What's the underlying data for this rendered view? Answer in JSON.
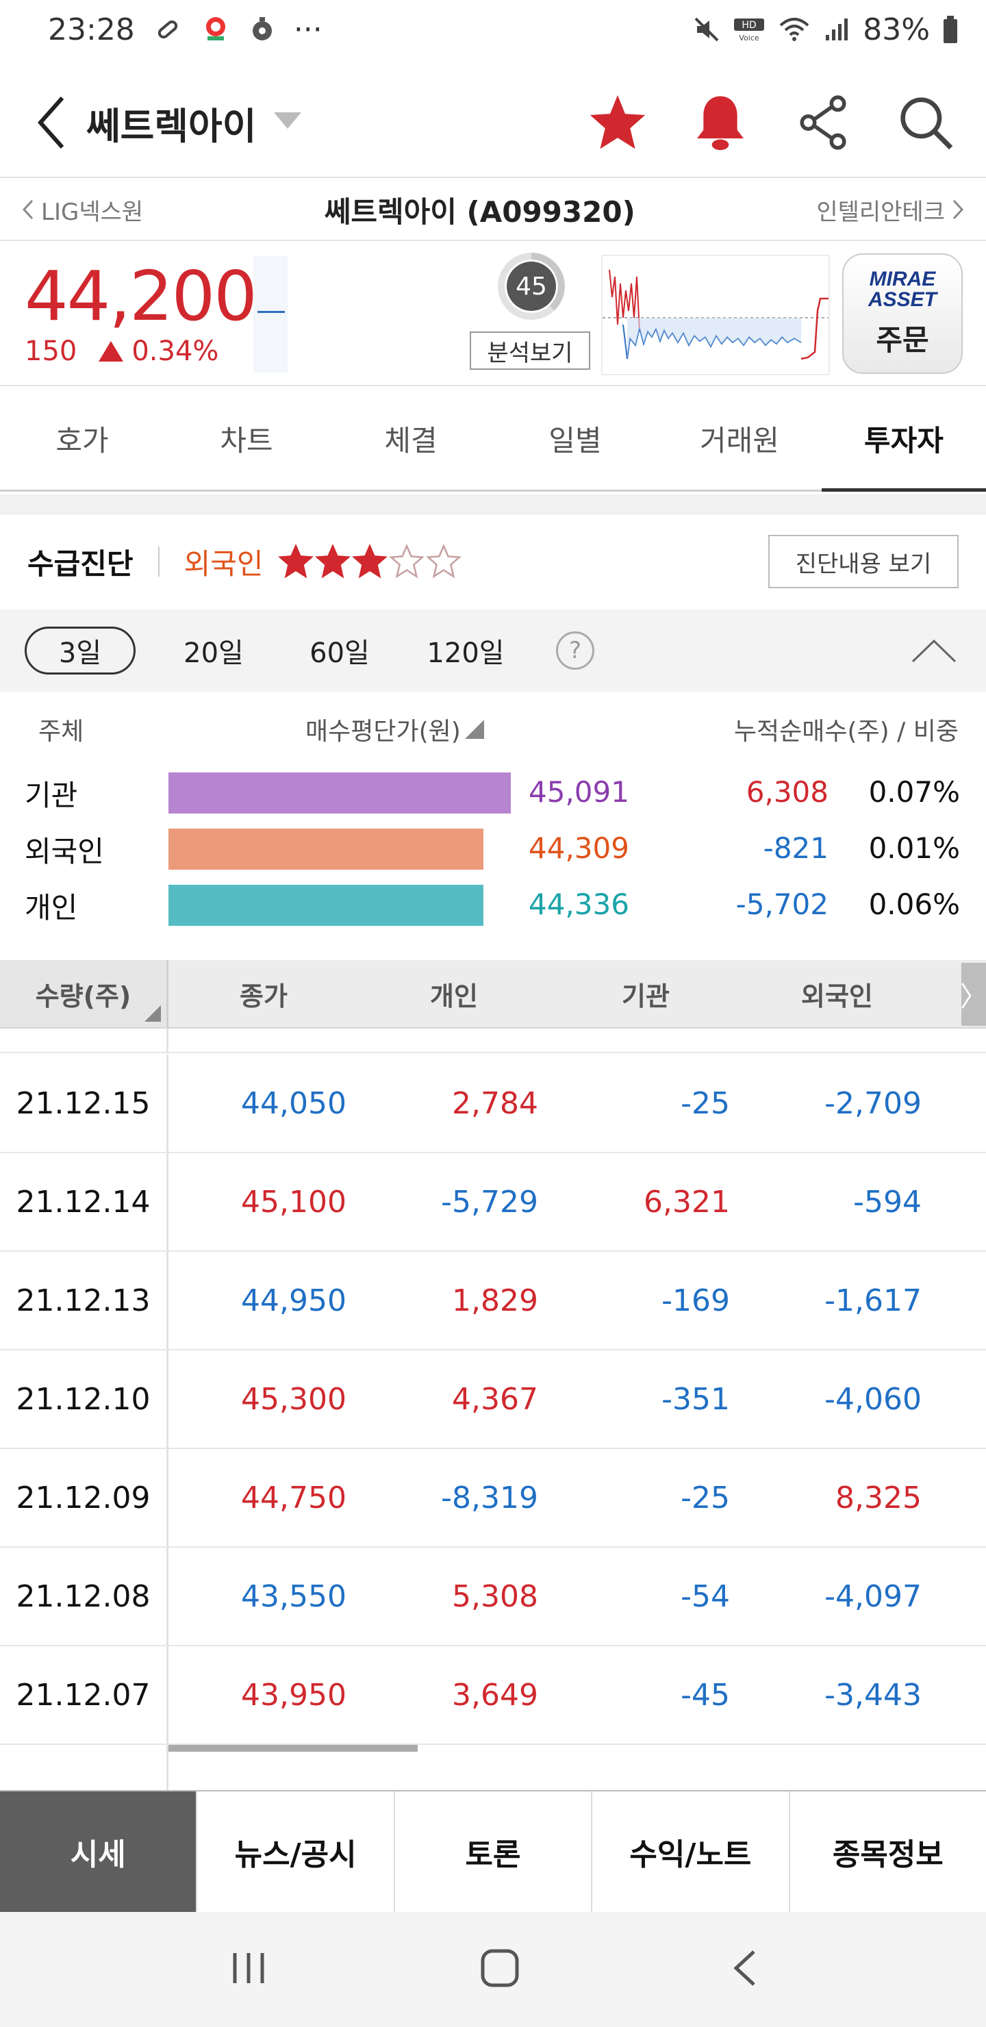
{
  "status_bar": {
    "time": "23:28",
    "battery": "83%"
  },
  "header": {
    "title": "쎄트렉아이"
  },
  "neighbors": {
    "prev": "LIG넥스원",
    "current": "쎄트렉아이 (A099320)",
    "next": "인텔리안테크"
  },
  "quote": {
    "price": "44,200",
    "change": "150",
    "change_pct": "0.34%",
    "score": "45",
    "analysis_label": "분석보기",
    "brand_line1": "MIRAE",
    "brand_line2": "ASSET",
    "order_label": "주문"
  },
  "tabs": [
    "호가",
    "차트",
    "체결",
    "일별",
    "거래원",
    "투자자"
  ],
  "active_tab": "투자자",
  "diagnosis": {
    "title": "수급진단",
    "subject": "외국인",
    "rating_stars": 3,
    "max_stars": 5,
    "button": "진단내용 보기"
  },
  "periods": [
    "3일",
    "20일",
    "60일",
    "120일"
  ],
  "active_period": "3일",
  "investor_summary": {
    "headers": {
      "subject": "주체",
      "avg_price": "매수평단가(원)",
      "net": "누적순매수(주) / 비중"
    },
    "rows": [
      {
        "label": "기관",
        "avg_price": "45,091",
        "net": "6,308",
        "ratio": "0.07%",
        "color": "#b784cf",
        "price_color": "#8a3cae",
        "net_color": "#d0282e",
        "bar_fill": 1.0
      },
      {
        "label": "외국인",
        "avg_price": "44,309",
        "net": "-821",
        "ratio": "0.01%",
        "color": "#eb9a7a",
        "price_color": "#e0531a",
        "net_color": "#1f6fc5",
        "bar_fill": 0.92
      },
      {
        "label": "개인",
        "avg_price": "44,336",
        "net": "-5,702",
        "ratio": "0.06%",
        "color": "#55bcc4",
        "price_color": "#19a3a8",
        "net_color": "#1f6fc5",
        "bar_fill": 0.92
      }
    ]
  },
  "table": {
    "headers": [
      "수량(주)",
      "종가",
      "개인",
      "기관",
      "외국인"
    ],
    "more": "〉",
    "rows": [
      {
        "date": "21.12.15",
        "close": "44,050",
        "individual": "2,784",
        "institution": "-25",
        "foreign": "-2,709"
      },
      {
        "date": "21.12.14",
        "close": "45,100",
        "individual": "-5,729",
        "institution": "6,321",
        "foreign": "-594"
      },
      {
        "date": "21.12.13",
        "close": "44,950",
        "individual": "1,829",
        "institution": "-169",
        "foreign": "-1,617"
      },
      {
        "date": "21.12.10",
        "close": "45,300",
        "individual": "4,367",
        "institution": "-351",
        "foreign": "-4,060"
      },
      {
        "date": "21.12.09",
        "close": "44,750",
        "individual": "-8,319",
        "institution": "-25",
        "foreign": "8,325"
      },
      {
        "date": "21.12.08",
        "close": "43,550",
        "individual": "5,308",
        "institution": "-54",
        "foreign": "-4,097"
      },
      {
        "date": "21.12.07",
        "close": "43,950",
        "individual": "3,649",
        "institution": "-45",
        "foreign": "-3,443"
      }
    ]
  },
  "bottom_nav": [
    "시세",
    "뉴스/공시",
    "토론",
    "수익/노트",
    "종목정보"
  ],
  "active_bottom": "시세",
  "colors": {
    "up": "#d0282e",
    "down": "#1f6fc5",
    "star": "#d0282e",
    "close_up_vs": "#d0282e"
  }
}
